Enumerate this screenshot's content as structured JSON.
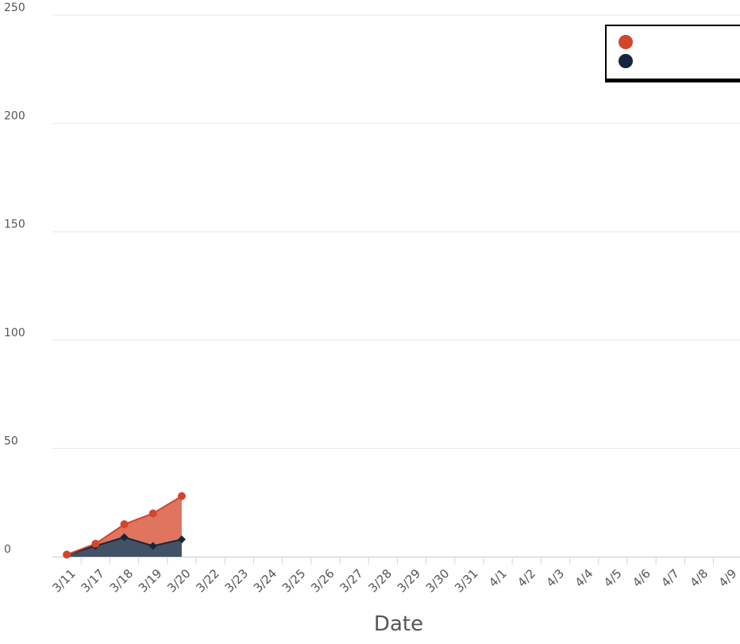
{
  "chart_data": {
    "type": "stacked-area",
    "x_label": "Date",
    "categories": [
      "3/11",
      "3/17",
      "3/18",
      "3/19",
      "3/20",
      "3/22",
      "3/23",
      "3/24",
      "3/25",
      "3/26",
      "3/27",
      "3/28",
      "3/29",
      "3/30",
      "3/31",
      "4/1",
      "4/2",
      "4/3",
      "4/4",
      "4/5",
      "4/6",
      "4/7",
      "4/8",
      "4/9"
    ],
    "series": [
      {
        "color": "#d4452a",
        "marker": "circle",
        "values": [
          0,
          1,
          6,
          15,
          20,
          null,
          null,
          null,
          null,
          null,
          null,
          null,
          null,
          null,
          null,
          null,
          null,
          null,
          null,
          null,
          null,
          null,
          null,
          null
        ]
      },
      {
        "color": "#14263f",
        "marker": "diamond",
        "values": [
          1,
          5,
          9,
          5,
          8,
          null,
          null,
          null,
          null,
          null,
          null,
          null,
          null,
          null,
          null,
          null,
          null,
          null,
          null,
          null,
          null,
          null,
          null,
          null
        ]
      }
    ],
    "ylim": [
      0,
      250
    ],
    "yticks": [
      0,
      50,
      100,
      150,
      200,
      250
    ],
    "grid": true
  }
}
